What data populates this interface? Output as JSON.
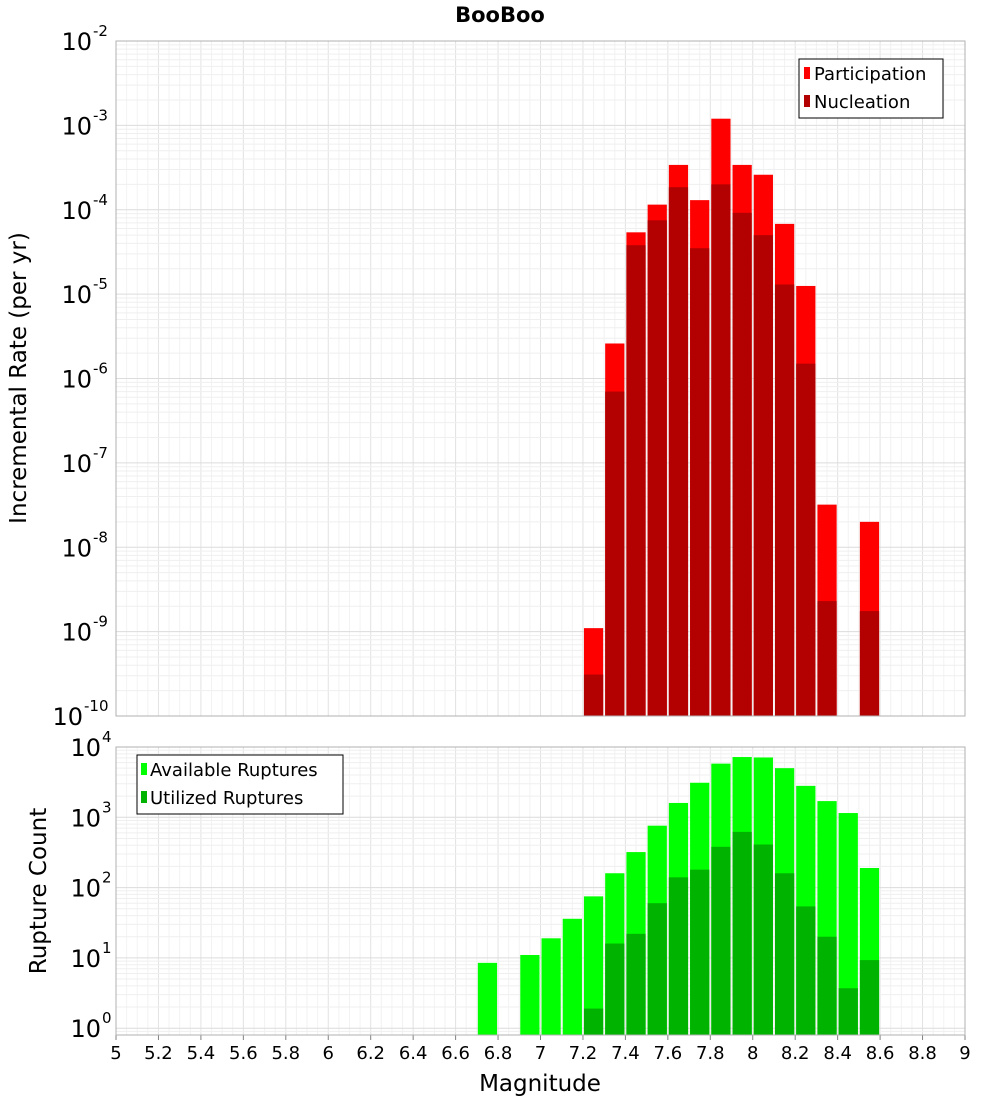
{
  "chart_data": [
    {
      "type": "bar",
      "title": "BooBoo",
      "xlabel": "",
      "ylabel": "Incremental Rate (per yr)",
      "yscale": "log",
      "ylim": [
        1e-10,
        0.01
      ],
      "xlim": [
        5,
        9
      ],
      "grid": true,
      "legend_position": "top-right",
      "y_ticks": [
        {
          "base": "10",
          "exp": "-10",
          "value": 1e-10
        },
        {
          "base": "10",
          "exp": "-9",
          "value": 1e-09
        },
        {
          "base": "10",
          "exp": "-8",
          "value": 1e-08
        },
        {
          "base": "10",
          "exp": "-7",
          "value": 1e-07
        },
        {
          "base": "10",
          "exp": "-6",
          "value": 1e-06
        },
        {
          "base": "10",
          "exp": "-5",
          "value": 1e-05
        },
        {
          "base": "10",
          "exp": "-4",
          "value": 0.0001
        },
        {
          "base": "10",
          "exp": "-3",
          "value": 0.001
        },
        {
          "base": "10",
          "exp": "-2",
          "value": 0.01
        }
      ],
      "series": [
        {
          "name": "Participation",
          "color": "#ff0000",
          "points": [
            {
              "x": 7.25,
              "y": 1.1e-09
            },
            {
              "x": 7.35,
              "y": 2.6e-06
            },
            {
              "x": 7.45,
              "y": 5.4e-05
            },
            {
              "x": 7.55,
              "y": 0.000115
            },
            {
              "x": 7.65,
              "y": 0.00034
            },
            {
              "x": 7.75,
              "y": 0.00013
            },
            {
              "x": 7.85,
              "y": 0.0012
            },
            {
              "x": 7.95,
              "y": 0.00034
            },
            {
              "x": 8.05,
              "y": 0.00026
            },
            {
              "x": 8.15,
              "y": 6.8e-05
            },
            {
              "x": 8.25,
              "y": 1.25e-05
            },
            {
              "x": 8.35,
              "y": 3.2e-08
            },
            {
              "x": 8.55,
              "y": 2e-08
            }
          ]
        },
        {
          "name": "Nucleation",
          "color": "#b30000",
          "points": [
            {
              "x": 7.25,
              "y": 3.1e-10
            },
            {
              "x": 7.35,
              "y": 7e-07
            },
            {
              "x": 7.45,
              "y": 3.8e-05
            },
            {
              "x": 7.55,
              "y": 7.5e-05
            },
            {
              "x": 7.65,
              "y": 0.000185
            },
            {
              "x": 7.75,
              "y": 3.5e-05
            },
            {
              "x": 7.85,
              "y": 0.0002
            },
            {
              "x": 7.95,
              "y": 9.2e-05
            },
            {
              "x": 8.05,
              "y": 5e-05
            },
            {
              "x": 8.15,
              "y": 1.3e-05
            },
            {
              "x": 8.25,
              "y": 1.5e-06
            },
            {
              "x": 8.35,
              "y": 2.3e-09
            },
            {
              "x": 8.55,
              "y": 1.75e-09
            }
          ]
        }
      ]
    },
    {
      "type": "bar",
      "title": "",
      "xlabel": "Magnitude",
      "ylabel": "Rupture Count",
      "yscale": "log",
      "ylim": [
        0.8,
        10000
      ],
      "xlim": [
        5,
        9
      ],
      "grid": true,
      "legend_position": "top-left",
      "x_ticks": [
        "5",
        "5.2",
        "5.4",
        "5.6",
        "5.8",
        "6",
        "6.2",
        "6.4",
        "6.6",
        "6.8",
        "7",
        "7.2",
        "7.4",
        "7.6",
        "7.8",
        "8",
        "8.2",
        "8.4",
        "8.6",
        "8.8",
        "9"
      ],
      "y_ticks": [
        {
          "base": "10",
          "exp": "0",
          "value": 1
        },
        {
          "base": "10",
          "exp": "1",
          "value": 10
        },
        {
          "base": "10",
          "exp": "2",
          "value": 100
        },
        {
          "base": "10",
          "exp": "3",
          "value": 1000
        },
        {
          "base": "10",
          "exp": "4",
          "value": 10000
        }
      ],
      "series": [
        {
          "name": "Available Ruptures",
          "color": "#00ff00",
          "points": [
            {
              "x": 6.75,
              "y": 8.5
            },
            {
              "x": 6.95,
              "y": 11
            },
            {
              "x": 7.05,
              "y": 19
            },
            {
              "x": 7.15,
              "y": 36
            },
            {
              "x": 7.25,
              "y": 75
            },
            {
              "x": 7.35,
              "y": 160
            },
            {
              "x": 7.45,
              "y": 320
            },
            {
              "x": 7.55,
              "y": 760
            },
            {
              "x": 7.65,
              "y": 1600
            },
            {
              "x": 7.75,
              "y": 3100
            },
            {
              "x": 7.85,
              "y": 5800
            },
            {
              "x": 7.95,
              "y": 7200
            },
            {
              "x": 8.05,
              "y": 7100
            },
            {
              "x": 8.15,
              "y": 5000
            },
            {
              "x": 8.25,
              "y": 2800
            },
            {
              "x": 8.35,
              "y": 1700
            },
            {
              "x": 8.45,
              "y": 1150
            },
            {
              "x": 8.55,
              "y": 190
            }
          ]
        },
        {
          "name": "Utilized Ruptures",
          "color": "#00b300",
          "points": [
            {
              "x": 7.25,
              "y": 1.9
            },
            {
              "x": 7.35,
              "y": 16
            },
            {
              "x": 7.45,
              "y": 22
            },
            {
              "x": 7.55,
              "y": 60
            },
            {
              "x": 7.65,
              "y": 140
            },
            {
              "x": 7.75,
              "y": 180
            },
            {
              "x": 7.85,
              "y": 380
            },
            {
              "x": 7.95,
              "y": 620
            },
            {
              "x": 8.05,
              "y": 410
            },
            {
              "x": 8.15,
              "y": 160
            },
            {
              "x": 8.25,
              "y": 54
            },
            {
              "x": 8.35,
              "y": 20
            },
            {
              "x": 8.45,
              "y": 3.7
            },
            {
              "x": 8.55,
              "y": 9.3
            }
          ]
        }
      ]
    }
  ]
}
